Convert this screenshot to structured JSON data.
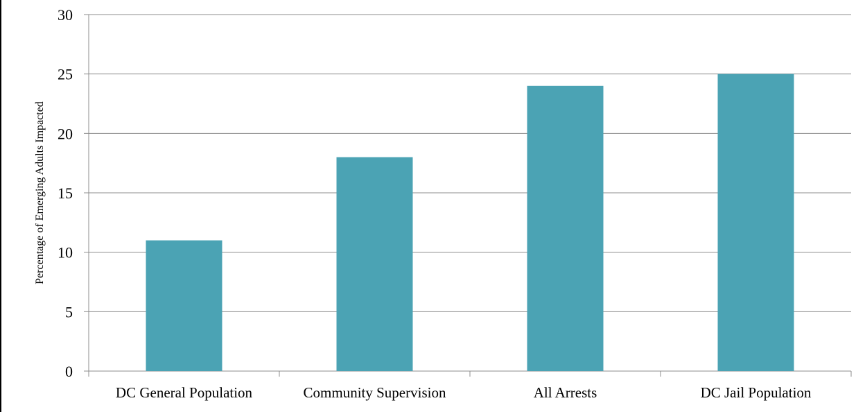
{
  "chart_data": {
    "type": "bar",
    "title": "",
    "xlabel": "",
    "ylabel": "Percentage of Emerging Adults Impacted",
    "categories": [
      "DC General Population",
      "Community Supervision",
      "All Arrests",
      "DC Jail Population"
    ],
    "values": [
      11,
      18,
      24,
      25
    ],
    "ylim": [
      0,
      30
    ],
    "yticks": [
      "0",
      "5",
      "10",
      "15",
      "20",
      "25",
      "30"
    ],
    "grid": true,
    "legend": "none",
    "bar_color": "#4ba3b4"
  }
}
